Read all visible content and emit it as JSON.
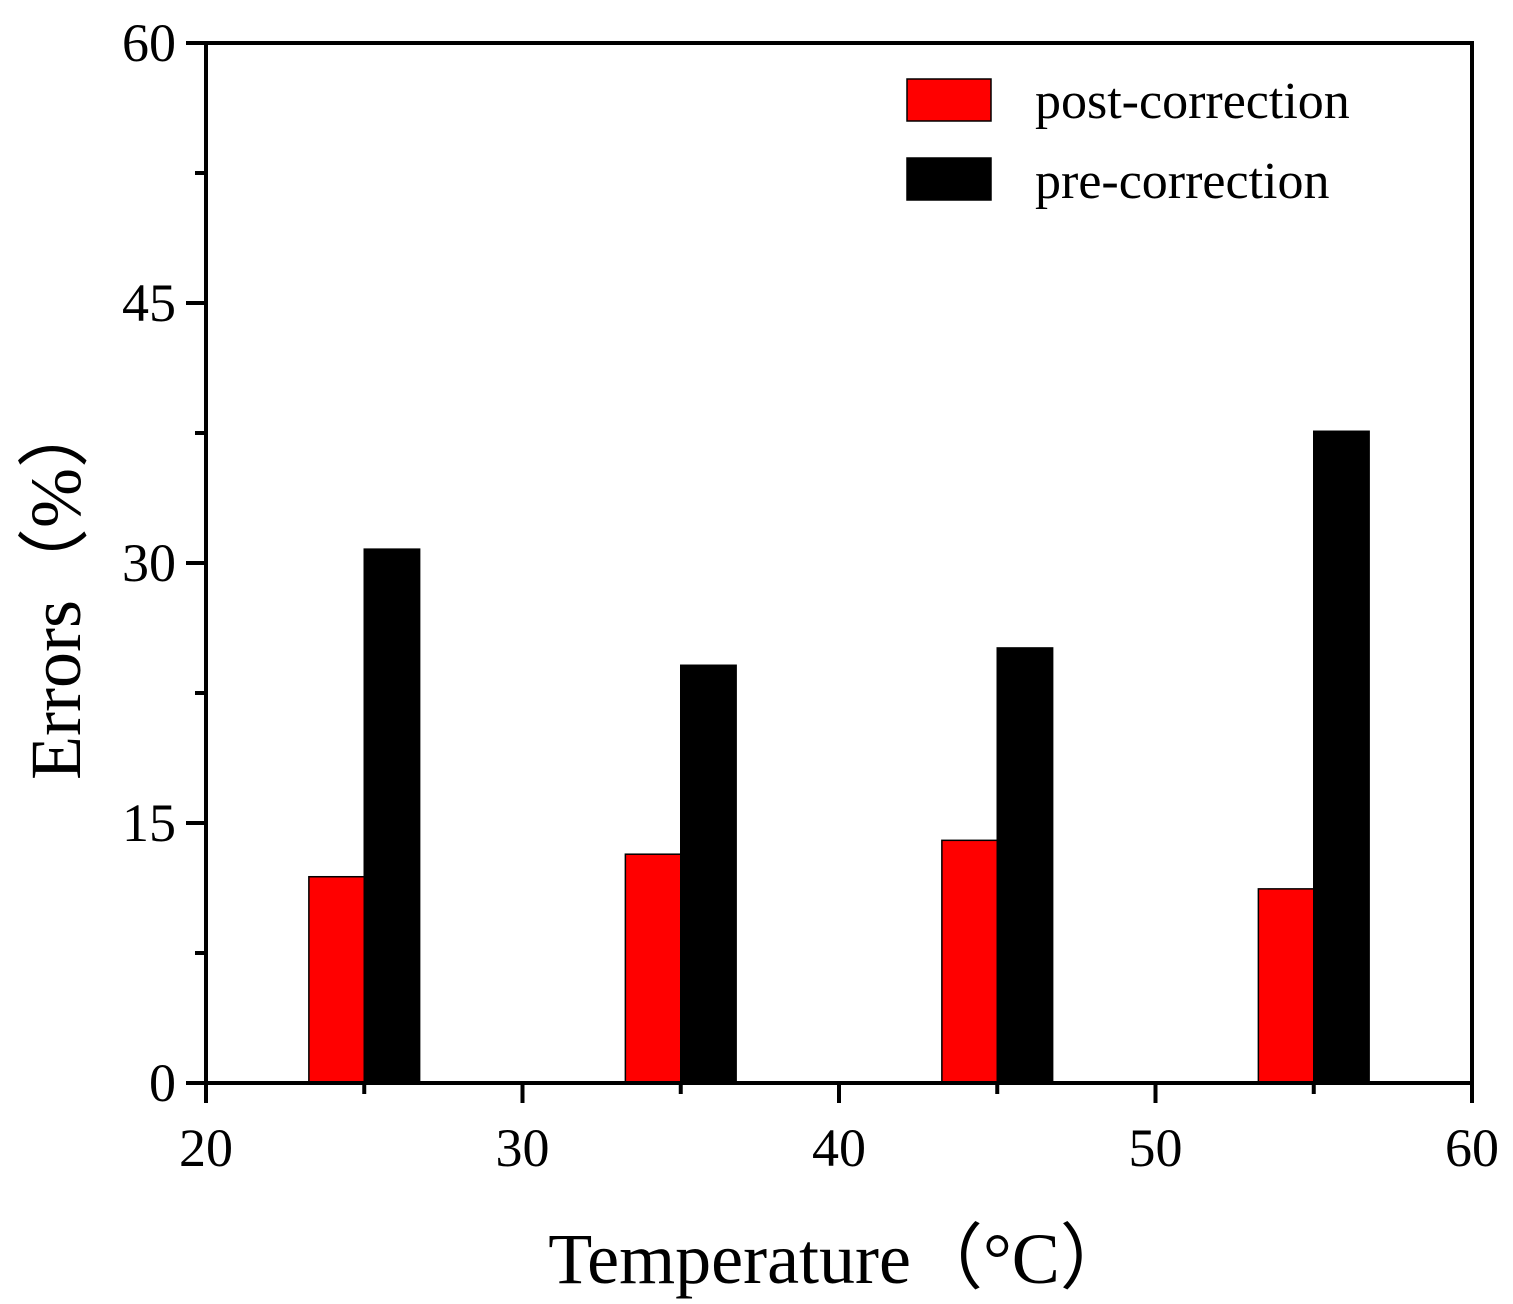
{
  "chart_data": {
    "type": "bar",
    "title": "",
    "xlabel": "Temperature（°C）",
    "ylabel": "Errors（%）",
    "xlim": [
      20,
      60
    ],
    "ylim": [
      0,
      60
    ],
    "x_ticks": [
      20,
      30,
      40,
      50,
      60
    ],
    "y_ticks": [
      0,
      15,
      30,
      45,
      60
    ],
    "x_minor_ticks": [
      25,
      35,
      45,
      55
    ],
    "y_minor_ticks": [
      7.5,
      22.5,
      37.5,
      52.5
    ],
    "bar_width": 1.75,
    "grid": false,
    "legend_position": "top-right",
    "categories": [
      25,
      35,
      45,
      55
    ],
    "series": [
      {
        "name": "post-correction",
        "color": "#ff0000",
        "offset": -0.875,
        "values": [
          11.9,
          13.2,
          14.0,
          11.2
        ]
      },
      {
        "name": "pre-correction",
        "color": "#000000",
        "offset": 0.875,
        "values": [
          30.8,
          24.1,
          25.1,
          37.6
        ]
      }
    ]
  }
}
